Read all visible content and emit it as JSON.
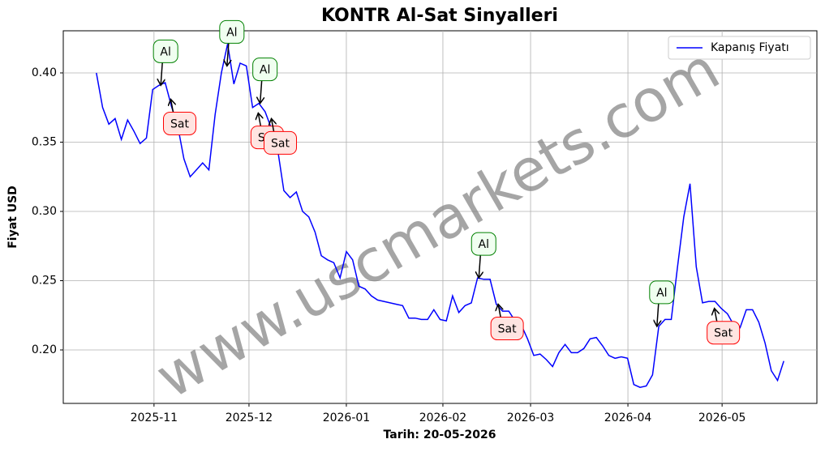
{
  "chart_data": {
    "type": "line",
    "title": "KONTR Al-Sat Sinyalleri",
    "xlabel": "Tarih: 20-05-2026",
    "ylabel": "Fiyat USD",
    "watermark": "www.uscmarkets.com",
    "grid": true,
    "legend": "upper right",
    "xlim": [
      -5.3,
      115.3
    ],
    "xticks": [
      {
        "value": 9.22,
        "label": "2025-11"
      },
      {
        "value": 24.42,
        "label": "2025-12"
      },
      {
        "value": 40.0,
        "label": "2026-01"
      },
      {
        "value": 55.45,
        "label": "2026-02"
      },
      {
        "value": 69.48,
        "label": "2026-03"
      },
      {
        "value": 85.06,
        "label": "2026-04"
      },
      {
        "value": 100.13,
        "label": "2026-05"
      }
    ],
    "ylim": [
      0.1614,
      0.4304
    ],
    "yticks": [
      {
        "value": 0.2,
        "label": "0.20"
      },
      {
        "value": 0.25,
        "label": "0.25"
      },
      {
        "value": 0.3,
        "label": "0.30"
      },
      {
        "value": 0.35,
        "label": "0.35"
      },
      {
        "value": 0.4,
        "label": "0.40"
      }
    ],
    "series": [
      {
        "name": "Kapanış Fiyatı",
        "color": "#0000ff",
        "values": [
          0.4,
          0.375,
          0.363,
          0.367,
          0.352,
          0.366,
          0.358,
          0.349,
          0.353,
          0.388,
          0.391,
          0.393,
          0.376,
          0.362,
          0.338,
          0.325,
          0.33,
          0.335,
          0.33,
          0.37,
          0.4,
          0.421,
          0.392,
          0.407,
          0.405,
          0.375,
          0.378,
          0.372,
          0.36,
          0.345,
          0.315,
          0.31,
          0.314,
          0.3,
          0.296,
          0.285,
          0.268,
          0.265,
          0.263,
          0.252,
          0.271,
          0.265,
          0.246,
          0.244,
          0.239,
          0.236,
          0.235,
          0.234,
          0.233,
          0.232,
          0.223,
          0.223,
          0.222,
          0.222,
          0.229,
          0.222,
          0.221,
          0.239,
          0.227,
          0.232,
          0.234,
          0.252,
          0.251,
          0.251,
          0.233,
          0.228,
          0.228,
          0.221,
          0.218,
          0.208,
          0.196,
          0.197,
          0.193,
          0.188,
          0.198,
          0.204,
          0.198,
          0.198,
          0.201,
          0.208,
          0.209,
          0.203,
          0.196,
          0.194,
          0.195,
          0.194,
          0.175,
          0.173,
          0.174,
          0.182,
          0.217,
          0.222,
          0.222,
          0.26,
          0.296,
          0.32,
          0.26,
          0.234,
          0.235,
          0.235,
          0.23,
          0.226,
          0.218,
          0.216,
          0.229,
          0.229,
          0.22,
          0.205,
          0.185,
          0.178,
          0.192
        ]
      }
    ],
    "annotations": [
      {
        "label": "Al",
        "x": 10.3,
        "y": 0.391
      },
      {
        "label": "Al",
        "x": 20.9,
        "y": 0.405
      },
      {
        "label": "Al",
        "x": 26.2,
        "y": 0.378
      },
      {
        "label": "Al",
        "x": 61.2,
        "y": 0.252
      },
      {
        "label": "Al",
        "x": 89.7,
        "y": 0.217
      },
      {
        "label": "Sat",
        "x": 11.9,
        "y": 0.381
      },
      {
        "label": "Sat",
        "x": 25.9,
        "y": 0.371
      },
      {
        "label": "Sat",
        "x": 28.0,
        "y": 0.367
      },
      {
        "label": "Sat",
        "x": 64.3,
        "y": 0.233
      },
      {
        "label": "Sat",
        "x": 98.9,
        "y": 0.23
      }
    ]
  }
}
